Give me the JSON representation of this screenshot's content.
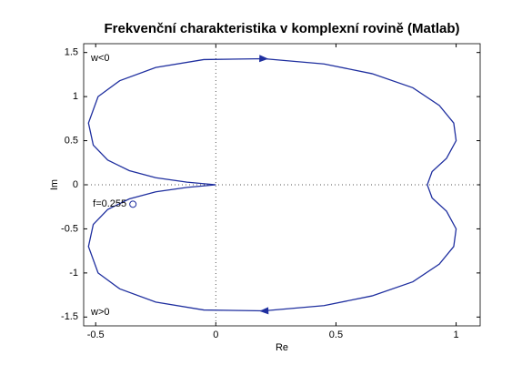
{
  "chart_data": {
    "type": "line",
    "title": "Frekvenční charakteristika v komplexní rovině (Matlab)",
    "x_label": "Re",
    "y_label": "Im",
    "x": [
      0,
      -0.12,
      -0.25,
      -0.36,
      -0.45,
      -0.51,
      -0.53,
      -0.49,
      -0.4,
      -0.25,
      -0.05,
      0.2,
      0.45,
      0.65,
      0.82,
      0.93,
      0.99,
      1.0,
      0.96,
      0.9,
      0.88,
      0.9,
      0.96,
      1.0,
      0.99,
      0.93,
      0.82,
      0.65,
      0.45,
      0.2,
      -0.05,
      -0.25,
      -0.4,
      -0.49,
      -0.53,
      -0.51,
      -0.45,
      -0.36,
      -0.25,
      -0.12,
      0
    ],
    "series": [
      {
        "color": "#1f2f9f",
        "values": [
          0,
          0.03,
          0.08,
          0.16,
          0.28,
          0.45,
          0.7,
          1.0,
          1.18,
          1.33,
          1.42,
          1.43,
          1.37,
          1.26,
          1.1,
          0.9,
          0.7,
          0.5,
          0.3,
          0.15,
          0,
          -0.15,
          -0.3,
          -0.5,
          -0.7,
          -0.9,
          -1.1,
          -1.26,
          -1.37,
          -1.43,
          -1.42,
          -1.33,
          -1.18,
          -1.0,
          -0.7,
          -0.45,
          -0.28,
          -0.16,
          -0.08,
          -0.03,
          0
        ]
      }
    ],
    "marker": {
      "label": "f=0.255",
      "x": -0.345,
      "y": -0.22
    },
    "annotations": [
      "w<0",
      "w>0"
    ],
    "xlim": [
      -0.55,
      1.1
    ],
    "ylim": [
      -1.6,
      1.6
    ],
    "xticks": [
      -0.5,
      0,
      0.5,
      1
    ],
    "yticks": [
      -1.5,
      -1,
      -0.5,
      0,
      0.5,
      1,
      1.5
    ],
    "zero_lines": true
  }
}
